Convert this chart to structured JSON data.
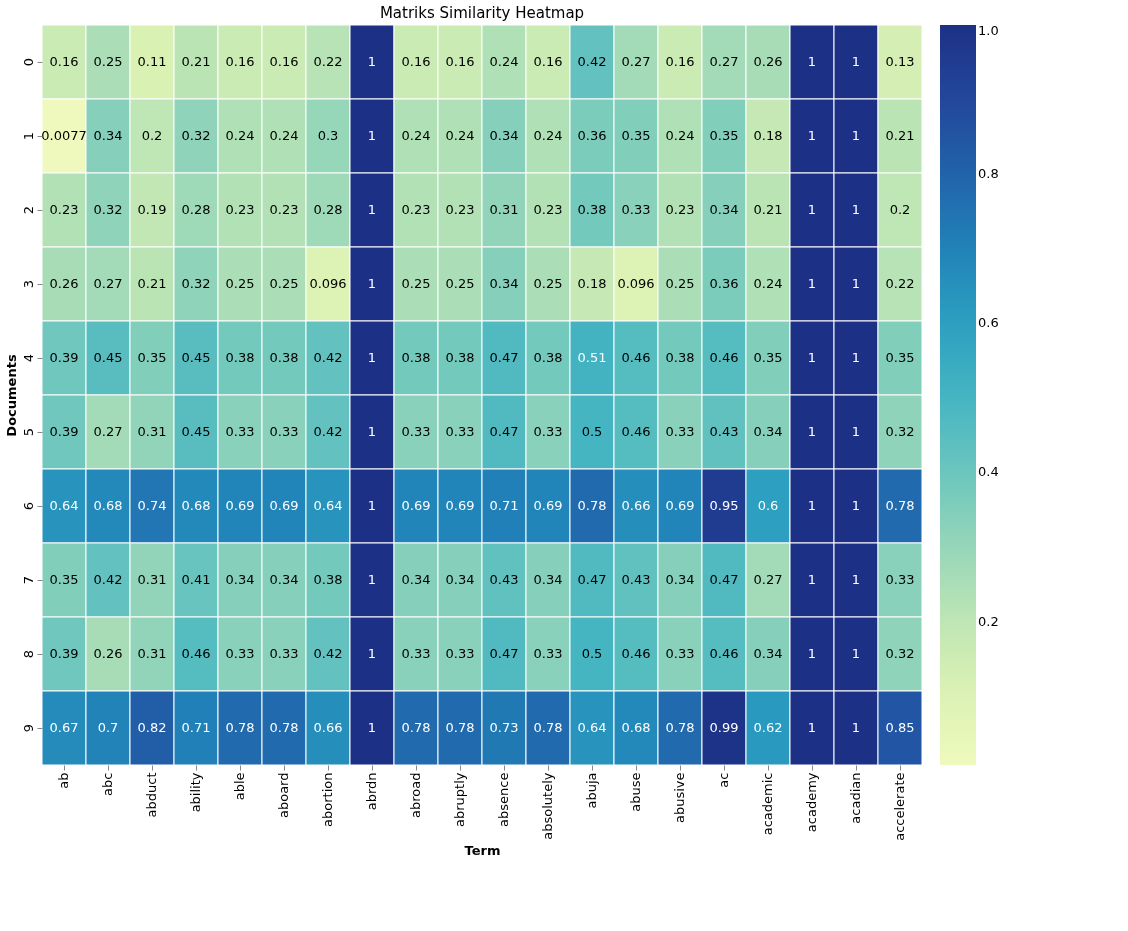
{
  "chart_data": {
    "type": "heatmap",
    "title": "Matriks Similarity Heatmap",
    "xlabel": "Term",
    "ylabel": "Documents",
    "categories": [
      "ab",
      "abc",
      "abduct",
      "ability",
      "able",
      "aboard",
      "abortion",
      "abrdn",
      "abroad",
      "abruptly",
      "absence",
      "absolutely",
      "abuja",
      "abuse",
      "abusive",
      "ac",
      "academic",
      "academy",
      "acadian",
      "accelerate"
    ],
    "y_categories": [
      "0",
      "1",
      "2",
      "3",
      "4",
      "5",
      "6",
      "7",
      "8",
      "9"
    ],
    "cells": [
      [
        0.16,
        0.25,
        0.11,
        0.21,
        0.16,
        0.16,
        0.22,
        1,
        0.16,
        0.16,
        0.24,
        0.16,
        0.42,
        0.27,
        0.16,
        0.27,
        0.26,
        1,
        1,
        0.13
      ],
      [
        0.0077,
        0.34,
        0.2,
        0.32,
        0.24,
        0.24,
        0.3,
        1,
        0.24,
        0.24,
        0.34,
        0.24,
        0.36,
        0.35,
        0.24,
        0.35,
        0.18,
        1,
        1,
        0.21
      ],
      [
        0.23,
        0.32,
        0.19,
        0.28,
        0.23,
        0.23,
        0.28,
        1,
        0.23,
        0.23,
        0.31,
        0.23,
        0.38,
        0.33,
        0.23,
        0.34,
        0.21,
        1,
        1,
        0.2
      ],
      [
        0.26,
        0.27,
        0.21,
        0.32,
        0.25,
        0.25,
        0.096,
        1,
        0.25,
        0.25,
        0.34,
        0.25,
        0.18,
        0.096,
        0.25,
        0.36,
        0.24,
        1,
        1,
        0.22
      ],
      [
        0.39,
        0.45,
        0.35,
        0.45,
        0.38,
        0.38,
        0.42,
        1,
        0.38,
        0.38,
        0.47,
        0.38,
        0.51,
        0.46,
        0.38,
        0.46,
        0.35,
        1,
        1,
        0.35
      ],
      [
        0.39,
        0.27,
        0.31,
        0.45,
        0.33,
        0.33,
        0.42,
        1,
        0.33,
        0.33,
        0.47,
        0.33,
        0.5,
        0.46,
        0.33,
        0.43,
        0.34,
        1,
        1,
        0.32
      ],
      [
        0.64,
        0.68,
        0.74,
        0.68,
        0.69,
        0.69,
        0.64,
        1,
        0.69,
        0.69,
        0.71,
        0.69,
        0.78,
        0.66,
        0.69,
        0.95,
        0.6,
        1,
        1,
        0.78
      ],
      [
        0.35,
        0.42,
        0.31,
        0.41,
        0.34,
        0.34,
        0.38,
        1,
        0.34,
        0.34,
        0.43,
        0.34,
        0.47,
        0.43,
        0.34,
        0.47,
        0.27,
        1,
        1,
        0.33
      ],
      [
        0.39,
        0.26,
        0.31,
        0.46,
        0.33,
        0.33,
        0.42,
        1,
        0.33,
        0.33,
        0.47,
        0.33,
        0.5,
        0.46,
        0.33,
        0.46,
        0.34,
        1,
        1,
        0.32
      ],
      [
        0.67,
        0.7,
        0.82,
        0.71,
        0.78,
        0.78,
        0.66,
        1,
        0.78,
        0.78,
        0.73,
        0.78,
        0.64,
        0.68,
        0.78,
        0.99,
        0.62,
        1,
        1,
        0.85
      ]
    ],
    "clim": [
      0.0077,
      1
    ],
    "cticks": [
      0.2,
      0.4,
      0.6,
      0.8,
      {
        "value": 1,
        "label": "1.0"
      }
    ],
    "data_labels": true
  }
}
